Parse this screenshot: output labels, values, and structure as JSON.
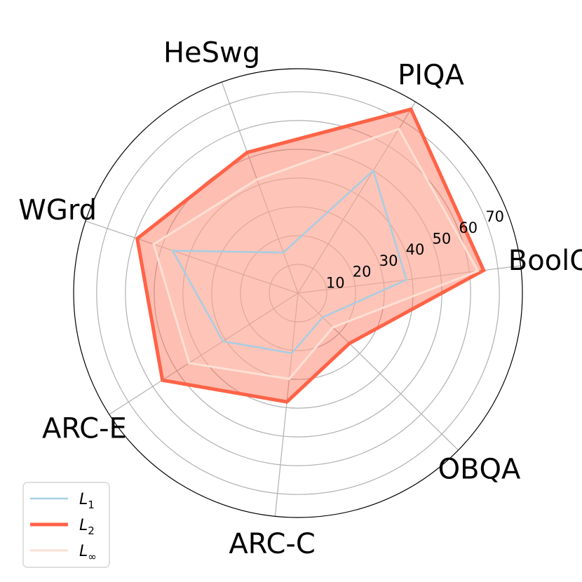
{
  "chart_data": {
    "type": "radar",
    "categories": [
      "BoolQ",
      "PIQA",
      "HeSwg",
      "WGrd",
      "ARC-E",
      "ARC-C",
      "OBQA"
    ],
    "r_ticks": [
      10,
      20,
      30,
      40,
      50,
      60,
      70
    ],
    "r_max": 78,
    "grid": true,
    "legend_position": "bottom-left",
    "series": [
      {
        "name": "L1",
        "name_base": "L",
        "name_sub": "1",
        "color": "#a6cee3",
        "fill": false,
        "values": [
          38,
          50,
          15,
          46,
          31,
          21,
          12
        ]
      },
      {
        "name": "L2",
        "name_base": "L",
        "name_sub": "2",
        "color": "#ff6347",
        "fill": true,
        "fill_color": "#ff6347",
        "values": [
          65,
          75,
          52,
          59,
          56,
          38,
          25
        ]
      },
      {
        "name": "L∞",
        "name_base": "L",
        "name_sub": "∞",
        "color": "#fde0d5",
        "fill": true,
        "fill_color": "#ffd2c4",
        "values": [
          63,
          67,
          42,
          53,
          45,
          30,
          17
        ]
      }
    ]
  }
}
